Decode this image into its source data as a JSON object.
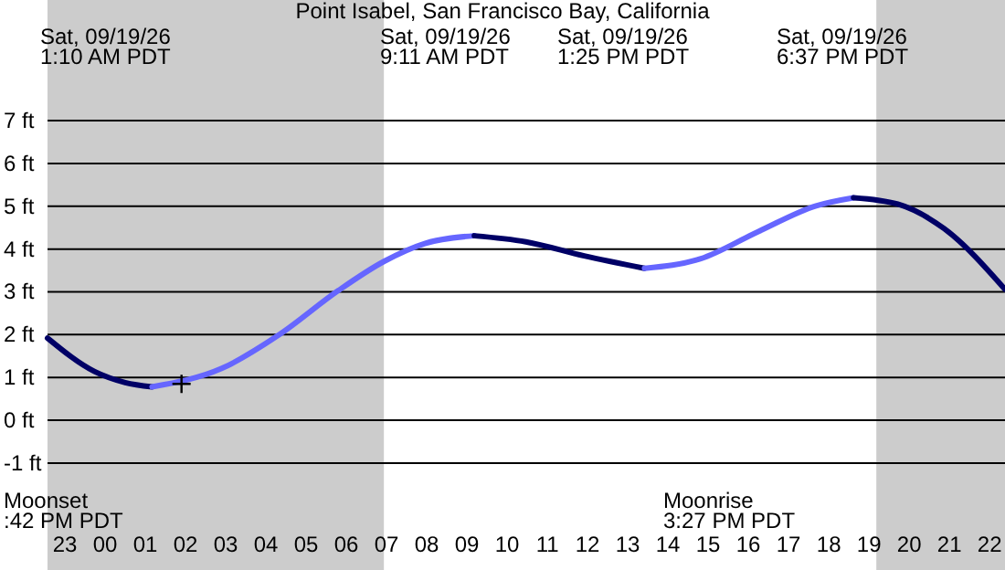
{
  "chart_data": {
    "type": "line",
    "title": "Point Isabel, San Francisco Bay, California",
    "xlim": [
      "--09-18T22:34",
      "--09-19T22:23"
    ],
    "ylim": [
      -3.5,
      9.82
    ],
    "xticks": [
      {
        "value": "--09-18T23:00",
        "label": "23"
      },
      {
        "value": "--09-19T00:00",
        "label": "00"
      },
      {
        "value": "--09-19T01:00",
        "label": "01"
      },
      {
        "value": "--09-19T02:00",
        "label": "02"
      },
      {
        "value": "--09-19T03:00",
        "label": "03"
      },
      {
        "value": "--09-19T04:00",
        "label": "04"
      },
      {
        "value": "--09-19T05:00",
        "label": "05"
      },
      {
        "value": "--09-19T06:00",
        "label": "06"
      },
      {
        "value": "--09-19T07:00",
        "label": "07"
      },
      {
        "value": "--09-19T08:00",
        "label": "08"
      },
      {
        "value": "--09-19T09:00",
        "label": "09"
      },
      {
        "value": "--09-19T10:00",
        "label": "10"
      },
      {
        "value": "--09-19T11:00",
        "label": "11"
      },
      {
        "value": "--09-19T12:00",
        "label": "12"
      },
      {
        "value": "--09-19T13:00",
        "label": "13"
      },
      {
        "value": "--09-19T14:00",
        "label": "14"
      },
      {
        "value": "--09-19T15:00",
        "label": "15"
      },
      {
        "value": "--09-19T16:00",
        "label": "16"
      },
      {
        "value": "--09-19T17:00",
        "label": "17"
      },
      {
        "value": "--09-19T18:00",
        "label": "18"
      },
      {
        "value": "--09-19T19:00",
        "label": "19"
      },
      {
        "value": "--09-19T20:00",
        "label": "20"
      },
      {
        "value": "--09-19T21:00",
        "label": "21"
      },
      {
        "value": "--09-19T22:00",
        "label": "22"
      }
    ],
    "yticks": [
      {
        "value": -1,
        "label": "-1 ft"
      },
      {
        "value": 0,
        "label": "0 ft"
      },
      {
        "value": 1,
        "label": "1 ft"
      },
      {
        "value": 2,
        "label": "2 ft"
      },
      {
        "value": 3,
        "label": "3 ft"
      },
      {
        "value": 4,
        "label": "4 ft"
      },
      {
        "value": 5,
        "label": "5 ft"
      },
      {
        "value": 6,
        "label": "6 ft"
      },
      {
        "value": 7,
        "label": "7 ft"
      }
    ],
    "grid": "y",
    "marker": "none",
    "bands": [
      {
        "axis": "x",
        "from": "--09-18T22:34",
        "to": "--09-19T06:56",
        "color": "#cccccc"
      },
      {
        "axis": "x",
        "from": "--09-19T19:11",
        "to": "--09-19T22:23",
        "color": "#cccccc"
      }
    ],
    "series": [
      {
        "color": "#000066",
        "x": [
          "--09-18T22:34",
          "--09-18T23:44",
          "--09-19T00:30",
          "--09-19T01:10"
        ],
        "values": [
          1.92,
          1.14,
          0.88,
          0.78
        ]
      },
      {
        "color": "#6666ff",
        "x": [
          "--09-19T01:10",
          "--09-19T02:54",
          "--09-19T04:20",
          "--09-19T05:48",
          "--09-19T06:56",
          "--09-19T07:57",
          "--09-19T09:11"
        ],
        "values": [
          0.78,
          1.21,
          2.0,
          3.03,
          3.71,
          4.13,
          4.31
        ]
      },
      {
        "color": "#000066",
        "x": [
          "--09-19T09:11",
          "--09-19T10:28",
          "--09-19T11:55",
          "--09-19T13:25"
        ],
        "values": [
          4.31,
          4.17,
          3.84,
          3.55
        ]
      },
      {
        "color": "#6666ff",
        "x": [
          "--09-19T13:25",
          "--09-19T14:48",
          "--09-19T16:15",
          "--09-19T17:41",
          "--09-19T18:37"
        ],
        "values": [
          3.55,
          3.77,
          4.41,
          5.01,
          5.2
        ]
      },
      {
        "color": "#000066",
        "x": [
          "--09-19T18:37",
          "--09-19T19:43",
          "--09-19T20:52",
          "--09-19T22:23"
        ],
        "values": [
          5.2,
          5.05,
          4.48,
          3.06
        ]
      },
      {
        "type": "scatter",
        "marker": "cross",
        "color": "#000000",
        "x": [
          "--09-19T01:54"
        ],
        "values": [
          0.85
        ]
      }
    ],
    "annotations": [
      "Sat, 09/19/26\n1:10 AM PDT",
      "Sat, 09/19/26\n9:11 AM PDT",
      "Sat, 09/19/26\n1:25 PM PDT",
      "Sat, 09/19/26\n6:37 PM PDT",
      "Moonset\n:42 PM PDT",
      "Moonrise\n3:27 PM PDT"
    ]
  }
}
